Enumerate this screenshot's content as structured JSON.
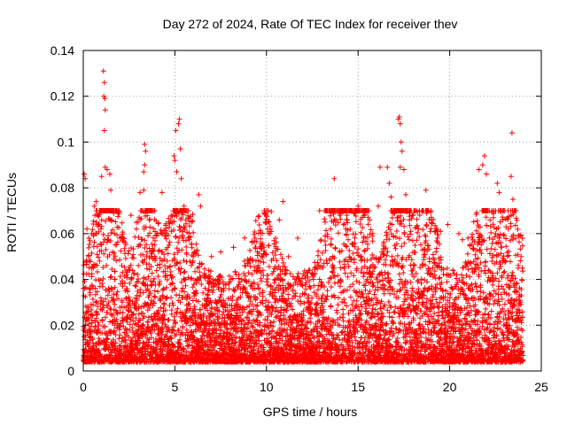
{
  "chart_data": {
    "type": "scatter",
    "title": "Day 272 of 2024, Rate Of TEC Index for receiver thev",
    "xlabel": "GPS time / hours",
    "ylabel": "ROTI / TECUs",
    "xlim": [
      0,
      25
    ],
    "ylim": [
      0,
      0.14
    ],
    "xticks": [
      0,
      5,
      10,
      15,
      20,
      25
    ],
    "xtick_labels": [
      "0",
      "5",
      "10",
      "15",
      "20",
      "25"
    ],
    "yticks": [
      0,
      0.02,
      0.04,
      0.06,
      0.08,
      0.1,
      0.12,
      0.14
    ],
    "ytick_labels": [
      "0",
      "0.02",
      "0.04",
      "0.06",
      "0.08",
      "0.1",
      "0.12",
      "0.14"
    ],
    "grid": true,
    "marker": "+",
    "color": "#ff0000",
    "series": [
      {
        "name": "ROTI",
        "note": "dense cloud of ~10000 points, mostly 0.003-0.035 TECU/s across 0-24 h",
        "points": [
          [
            0.05,
            0.086
          ],
          [
            0.1,
            0.084
          ],
          [
            0.2,
            0.062
          ],
          [
            0.3,
            0.058
          ],
          [
            0.45,
            0.06
          ],
          [
            0.6,
            0.072
          ],
          [
            0.7,
            0.074
          ],
          [
            0.8,
            0.068
          ],
          [
            1.0,
            0.085
          ],
          [
            1.1,
            0.131
          ],
          [
            1.15,
            0.126
          ],
          [
            1.12,
            0.12
          ],
          [
            1.18,
            0.119
          ],
          [
            1.2,
            0.114
          ],
          [
            1.15,
            0.105
          ],
          [
            1.2,
            0.089
          ],
          [
            1.3,
            0.088
          ],
          [
            1.45,
            0.086
          ],
          [
            1.5,
            0.079
          ],
          [
            1.55,
            0.066
          ],
          [
            1.7,
            0.06
          ],
          [
            2.0,
            0.058
          ],
          [
            2.3,
            0.056
          ],
          [
            2.6,
            0.068
          ],
          [
            2.9,
            0.062
          ],
          [
            3.1,
            0.078
          ],
          [
            3.3,
            0.079
          ],
          [
            3.35,
            0.099
          ],
          [
            3.4,
            0.096
          ],
          [
            3.35,
            0.09
          ],
          [
            3.3,
            0.087
          ],
          [
            3.6,
            0.066
          ],
          [
            4.0,
            0.059
          ],
          [
            4.3,
            0.078
          ],
          [
            4.45,
            0.059
          ],
          [
            4.8,
            0.068
          ],
          [
            4.95,
            0.094
          ],
          [
            5.0,
            0.092
          ],
          [
            5.05,
            0.105
          ],
          [
            5.1,
            0.087
          ],
          [
            5.2,
            0.108
          ],
          [
            5.25,
            0.11
          ],
          [
            5.3,
            0.097
          ],
          [
            5.35,
            0.084
          ],
          [
            5.5,
            0.072
          ],
          [
            5.6,
            0.066
          ],
          [
            6.0,
            0.05
          ],
          [
            6.3,
            0.077
          ],
          [
            6.4,
            0.072
          ],
          [
            7.0,
            0.05
          ],
          [
            7.5,
            0.052
          ],
          [
            8.2,
            0.054
          ],
          [
            8.8,
            0.048
          ],
          [
            9.5,
            0.052
          ],
          [
            9.9,
            0.07
          ],
          [
            10.0,
            0.068
          ],
          [
            10.2,
            0.062
          ],
          [
            10.5,
            0.058
          ],
          [
            10.7,
            0.066
          ],
          [
            10.9,
            0.074
          ],
          [
            11.2,
            0.05
          ],
          [
            11.7,
            0.058
          ],
          [
            12.3,
            0.044
          ],
          [
            12.9,
            0.07
          ],
          [
            13.2,
            0.059
          ],
          [
            13.5,
            0.062
          ],
          [
            13.7,
            0.084
          ],
          [
            14.0,
            0.068
          ],
          [
            14.4,
            0.066
          ],
          [
            14.8,
            0.07
          ],
          [
            15.0,
            0.072
          ],
          [
            15.3,
            0.058
          ],
          [
            15.8,
            0.06
          ],
          [
            16.1,
            0.072
          ],
          [
            16.2,
            0.089
          ],
          [
            16.6,
            0.089
          ],
          [
            16.7,
            0.082
          ],
          [
            16.8,
            0.076
          ],
          [
            17.0,
            0.07
          ],
          [
            17.2,
            0.11
          ],
          [
            17.25,
            0.111
          ],
          [
            17.3,
            0.108
          ],
          [
            17.35,
            0.1
          ],
          [
            17.4,
            0.096
          ],
          [
            17.3,
            0.089
          ],
          [
            17.5,
            0.088
          ],
          [
            17.6,
            0.077
          ],
          [
            17.8,
            0.066
          ],
          [
            18.2,
            0.063
          ],
          [
            18.7,
            0.079
          ],
          [
            19.0,
            0.066
          ],
          [
            19.5,
            0.061
          ],
          [
            19.9,
            0.064
          ],
          [
            20.5,
            0.06
          ],
          [
            21.0,
            0.058
          ],
          [
            21.6,
            0.088
          ],
          [
            21.8,
            0.09
          ],
          [
            21.9,
            0.094
          ],
          [
            22.0,
            0.086
          ],
          [
            22.2,
            0.066
          ],
          [
            22.5,
            0.06
          ],
          [
            22.6,
            0.082
          ],
          [
            22.7,
            0.078
          ],
          [
            22.9,
            0.066
          ],
          [
            23.2,
            0.062
          ],
          [
            23.35,
            0.085
          ],
          [
            23.4,
            0.104
          ],
          [
            23.45,
            0.075
          ],
          [
            23.6,
            0.058
          ],
          [
            23.9,
            0.05
          ]
        ]
      }
    ]
  }
}
